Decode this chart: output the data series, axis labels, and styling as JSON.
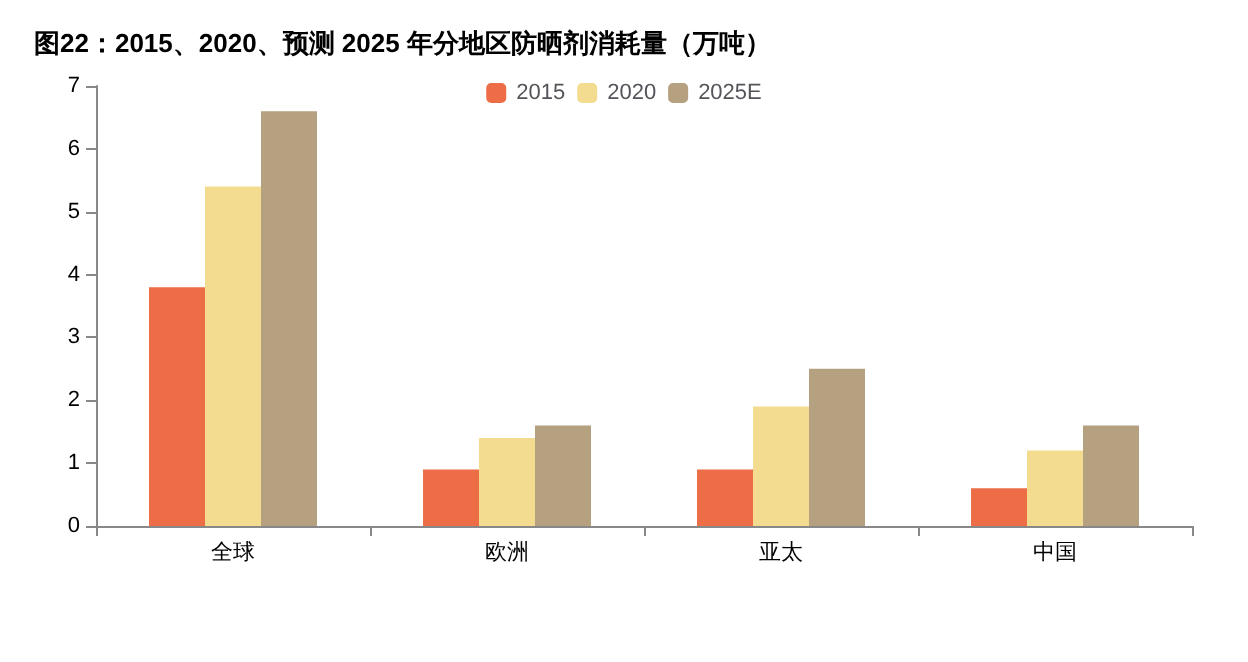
{
  "chart_data": {
    "type": "bar",
    "title": "图22：2015、2020、预测 2025 年分地区防晒剂消耗量（万吨）",
    "categories": [
      "全球",
      "欧洲",
      "亚太",
      "中国"
    ],
    "series": [
      {
        "name": "2015",
        "color": "#ed6d46",
        "values": [
          3.8,
          0.9,
          0.9,
          0.6
        ]
      },
      {
        "name": "2020",
        "color": "#f3dc8f",
        "values": [
          5.4,
          1.4,
          1.9,
          1.2
        ]
      },
      {
        "name": "2025E",
        "color": "#b5a07f",
        "values": [
          6.6,
          1.6,
          2.5,
          1.6
        ]
      }
    ],
    "ylim": [
      0,
      7
    ],
    "yticks": [
      0,
      1,
      2,
      3,
      4,
      5,
      6,
      7
    ],
    "grid": false,
    "legend": "top"
  }
}
